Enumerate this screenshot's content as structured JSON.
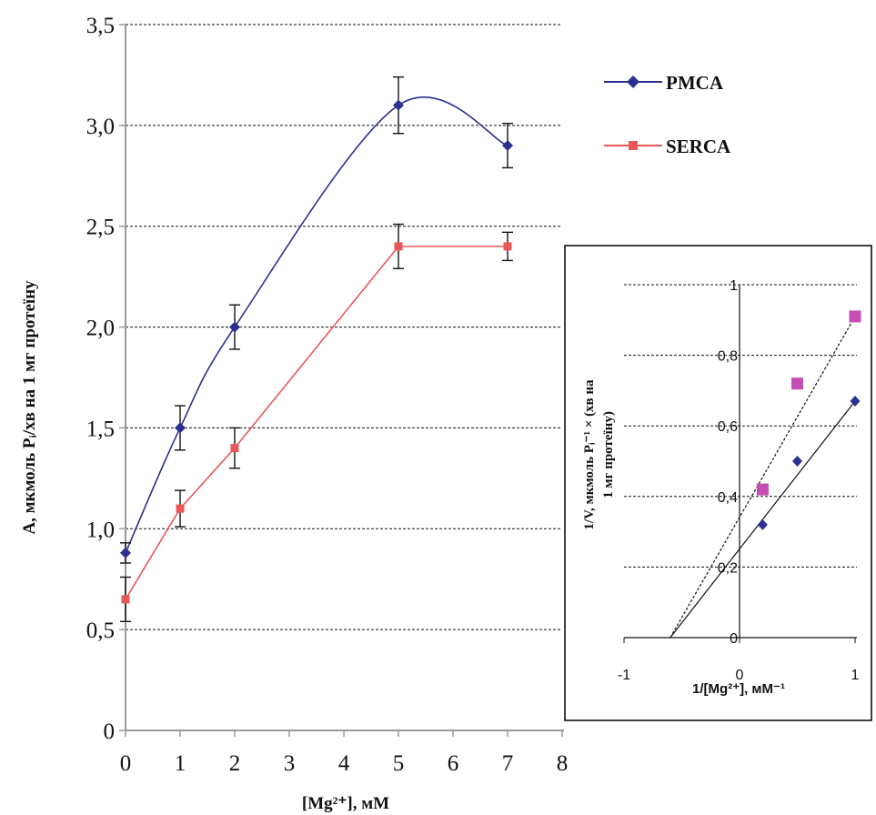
{
  "chart_data": [
    {
      "type": "line",
      "title": "",
      "xlabel": "[Mg²⁺], мМ",
      "ylabel": "А, мкмоль Pᵢ/хв на 1 мг протеїну",
      "xlim": [
        0,
        8
      ],
      "ylim": [
        0,
        3.5
      ],
      "x_ticks": [
        "0",
        "1",
        "2",
        "3",
        "4",
        "5",
        "6",
        "7",
        "8"
      ],
      "y_ticks": [
        "0",
        "0,5",
        "1,0",
        "1,5",
        "2,0",
        "2,5",
        "3,0",
        "3,5"
      ],
      "grid": "horizontal dashed",
      "legend_position": "top-right",
      "series": [
        {
          "name": "PMCA",
          "color": "#2b2f8f",
          "marker": "diamond",
          "smooth": true,
          "x": [
            0,
            1,
            2,
            5,
            7
          ],
          "y": [
            0.88,
            1.5,
            2.0,
            3.1,
            2.9
          ],
          "error": [
            0.05,
            0.11,
            0.11,
            0.14,
            0.11
          ]
        },
        {
          "name": "SERCA",
          "color": "#e8575a",
          "marker": "square",
          "smooth": false,
          "x": [
            0,
            1,
            2,
            5,
            7
          ],
          "y": [
            0.65,
            1.1,
            1.4,
            2.4,
            2.4
          ],
          "error": [
            0.11,
            0.09,
            0.1,
            0.11,
            0.07
          ]
        }
      ]
    },
    {
      "type": "scatter",
      "title": "",
      "xlabel": "1/[Mg²⁺], мМ⁻¹",
      "ylabel_line1": "1/V, мкмоль Pᵢ⁻¹ × (хв на",
      "ylabel_line2": "1 мг протеїну)",
      "xlim": [
        -1,
        1
      ],
      "ylim": [
        0,
        1
      ],
      "x_ticks": [
        "-1",
        "0",
        "1"
      ],
      "y_ticks": [
        "0",
        "0,2",
        "0,4",
        "0,6",
        "0,8",
        "1"
      ],
      "grid": "horizontal dashed",
      "series": [
        {
          "color": "#c44fb0",
          "marker": "square",
          "x": [
            0.2,
            0.5,
            1.0
          ],
          "y": [
            0.42,
            0.72,
            0.91
          ],
          "trendline": {
            "dash": true,
            "x": [
              -0.6,
              1.0
            ],
            "y": [
              0,
              0.91
            ]
          }
        },
        {
          "color": "#2b2f8f",
          "marker": "diamond",
          "x": [
            0.2,
            0.5,
            1.0
          ],
          "y": [
            0.32,
            0.5,
            0.67
          ],
          "trendline": {
            "dash": false,
            "x": [
              -0.6,
              1.0
            ],
            "y": [
              0,
              0.67
            ]
          }
        }
      ]
    }
  ]
}
